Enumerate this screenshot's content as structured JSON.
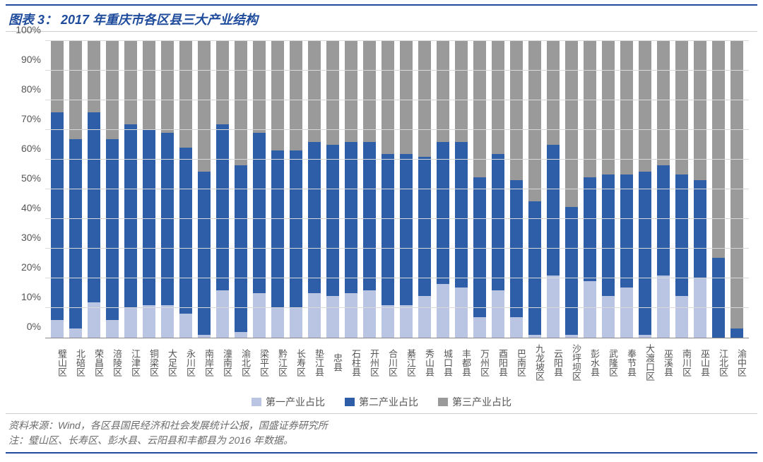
{
  "title": "图表 3：  2017 年重庆市各区县三大产业结构",
  "source": "资料来源：Wind，各区县国民经济和社会发展统计公报，国盛证券研究所",
  "note": "注：璧山区、长寿区、彭水县、云阳县和丰都县为 2016 年数据。",
  "chart": {
    "type": "stacked-bar",
    "y": {
      "min": 0,
      "max": 100,
      "step": 10,
      "suffix": "%"
    },
    "colors": {
      "primary": "#b9c5e2",
      "secondary": "#2f5ea8",
      "tertiary": "#9a9a9a",
      "grid": "#d9d9d9",
      "background": "#ffffff",
      "title": "#1e4b9b"
    },
    "legend": [
      {
        "label": "第一产业占比",
        "key": "primary"
      },
      {
        "label": "第二产业占比",
        "key": "secondary"
      },
      {
        "label": "第三产业占比",
        "key": "tertiary"
      }
    ],
    "categories": [
      {
        "name": "璧山区",
        "v": [
          6,
          70,
          24
        ]
      },
      {
        "name": "北碚区",
        "v": [
          3,
          64,
          33
        ]
      },
      {
        "name": "荣昌区",
        "v": [
          12,
          64,
          24
        ]
      },
      {
        "name": "涪陵区",
        "v": [
          6,
          61,
          33
        ]
      },
      {
        "name": "江津区",
        "v": [
          10,
          62,
          28
        ]
      },
      {
        "name": "铜梁区",
        "v": [
          11,
          59,
          30
        ]
      },
      {
        "name": "大足区",
        "v": [
          11,
          58,
          31
        ]
      },
      {
        "name": "永川区",
        "v": [
          8,
          56,
          36
        ]
      },
      {
        "name": "南岸区",
        "v": [
          1,
          55,
          44
        ]
      },
      {
        "name": "潼南区",
        "v": [
          16,
          56,
          28
        ]
      },
      {
        "name": "渝北区",
        "v": [
          2,
          56,
          42
        ]
      },
      {
        "name": "梁平区",
        "v": [
          15,
          54,
          31
        ]
      },
      {
        "name": "黔江区",
        "v": [
          10,
          53,
          37
        ]
      },
      {
        "name": "长寿区",
        "v": [
          10,
          53,
          37
        ]
      },
      {
        "name": "垫江县",
        "v": [
          15,
          51,
          34
        ]
      },
      {
        "name": "忠县",
        "v": [
          14,
          51,
          35
        ]
      },
      {
        "name": "石柱县",
        "v": [
          15,
          51,
          34
        ]
      },
      {
        "name": "开州区",
        "v": [
          16,
          50,
          34
        ]
      },
      {
        "name": "合川区",
        "v": [
          11,
          51,
          38
        ]
      },
      {
        "name": "綦江区",
        "v": [
          11,
          51,
          38
        ]
      },
      {
        "name": "秀山县",
        "v": [
          14,
          47,
          39
        ]
      },
      {
        "name": "城口县",
        "v": [
          18,
          48,
          34
        ]
      },
      {
        "name": "丰都县",
        "v": [
          17,
          49,
          34
        ]
      },
      {
        "name": "万州区",
        "v": [
          7,
          47,
          46
        ]
      },
      {
        "name": "酉阳县",
        "v": [
          16,
          46,
          38
        ]
      },
      {
        "name": "巴南区",
        "v": [
          7,
          46,
          47
        ]
      },
      {
        "name": "九龙坡区",
        "v": [
          1,
          45,
          54
        ]
      },
      {
        "name": "云阳县",
        "v": [
          21,
          44,
          35
        ]
      },
      {
        "name": "沙坪坝区",
        "v": [
          1,
          43,
          56
        ]
      },
      {
        "name": "彭水县",
        "v": [
          19,
          35,
          46
        ]
      },
      {
        "name": "武隆区",
        "v": [
          14,
          41,
          45
        ]
      },
      {
        "name": "奉节县",
        "v": [
          17,
          38,
          45
        ]
      },
      {
        "name": "大渡口区",
        "v": [
          1,
          55,
          44
        ]
      },
      {
        "name": "巫溪县",
        "v": [
          21,
          37,
          42
        ]
      },
      {
        "name": "南川区",
        "v": [
          14,
          41,
          45
        ]
      },
      {
        "name": "巫山县",
        "v": [
          20,
          33,
          47
        ]
      },
      {
        "name": "江北区",
        "v": [
          0,
          27,
          73
        ]
      },
      {
        "name": "渝中区",
        "v": [
          0,
          3,
          97
        ]
      }
    ]
  }
}
